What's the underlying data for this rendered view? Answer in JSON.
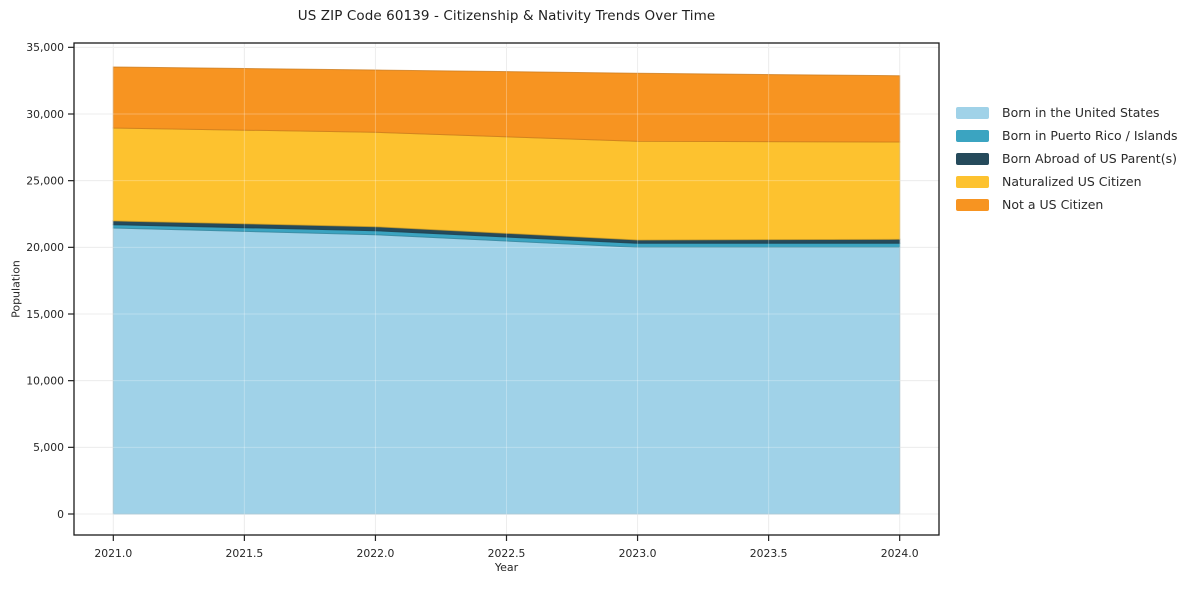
{
  "chart_data": {
    "type": "area",
    "stacked": true,
    "title": "US ZIP Code 60139 - Citizenship & Nativity Trends Over Time",
    "xlabel": "Year",
    "ylabel": "Population",
    "x": [
      2021,
      2022,
      2023,
      2024
    ],
    "series": [
      {
        "name": "Born in the United States",
        "color": "#a0d2e8",
        "values": [
          21450,
          20950,
          20000,
          20000
        ]
      },
      {
        "name": "Born in Puerto Rico / Islands",
        "color": "#3ba4c1",
        "values": [
          250,
          300,
          300,
          300
        ]
      },
      {
        "name": "Born Abroad of US Parent(s)",
        "color": "#254a5b",
        "values": [
          280,
          300,
          250,
          300
        ]
      },
      {
        "name": "Naturalized US Citizen",
        "color": "#fdc22f",
        "values": [
          6970,
          7075,
          7400,
          7300
        ]
      },
      {
        "name": "Not a US Citizen",
        "color": "#f79421",
        "values": [
          4575,
          4675,
          5100,
          4975
        ]
      }
    ],
    "stacked_totals": [
      33525,
      33300,
      33050,
      32875
    ],
    "x_ticks": [
      2021.0,
      2021.5,
      2022.0,
      2022.5,
      2023.0,
      2023.5,
      2024.0
    ],
    "x_tick_labels": [
      "2021.0",
      "2021.5",
      "2022.0",
      "2022.5",
      "2023.0",
      "2023.5",
      "2024.0"
    ],
    "y_ticks": [
      0,
      5000,
      10000,
      15000,
      20000,
      25000,
      30000,
      35000
    ],
    "y_tick_labels": [
      "0",
      "5,000",
      "10,000",
      "15,000",
      "20,000",
      "25,000",
      "30,000",
      "35,000"
    ],
    "xlim": [
      2020.85,
      2024.15
    ],
    "ylim": [
      -1575,
      35325
    ],
    "grid": true,
    "legend_position": "right-outside"
  },
  "colors": {
    "grid": "#e7e7e7",
    "spine": "#1a1a1a",
    "tick": "#222222",
    "text": "#262626"
  }
}
